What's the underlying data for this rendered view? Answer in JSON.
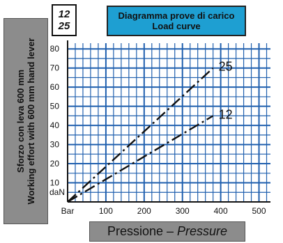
{
  "model_numbers": [
    "12",
    "25"
  ],
  "title_it": "Diagramma prove di carico",
  "title_en": "Load curve",
  "ylabel_it": "Sforzo con leva 600 mm",
  "ylabel_en": "Working effort with 600 mm hand lever",
  "xlabel_it": "Pressione",
  "xlabel_dash": " – ",
  "xlabel_en": "Pressure",
  "colors": {
    "title_bg": "#1e9fd2",
    "grid": "#1f5fae",
    "label_bg": "#8c8c8c"
  },
  "chart_data": {
    "type": "line",
    "title": "Diagramma prove di carico / Load curve",
    "xlabel": "Pressione – Pressure",
    "ylabel": "Sforzo con leva 600 mm / Working effort with 600 mm hand lever",
    "x_unit_label": "Bar",
    "y_unit_label": "daN",
    "xlim": [
      0,
      530
    ],
    "ylim": [
      0,
      83
    ],
    "x_ticks": [
      100,
      200,
      300,
      400,
      500
    ],
    "y_ticks": [
      10,
      20,
      30,
      40,
      50,
      60,
      70,
      80
    ],
    "grid": true,
    "series": [
      {
        "name": "25",
        "x": [
          0,
          380
        ],
        "y": [
          0,
          70
        ]
      },
      {
        "name": "12",
        "x": [
          0,
          380
        ],
        "y": [
          0,
          45
        ]
      }
    ]
  }
}
